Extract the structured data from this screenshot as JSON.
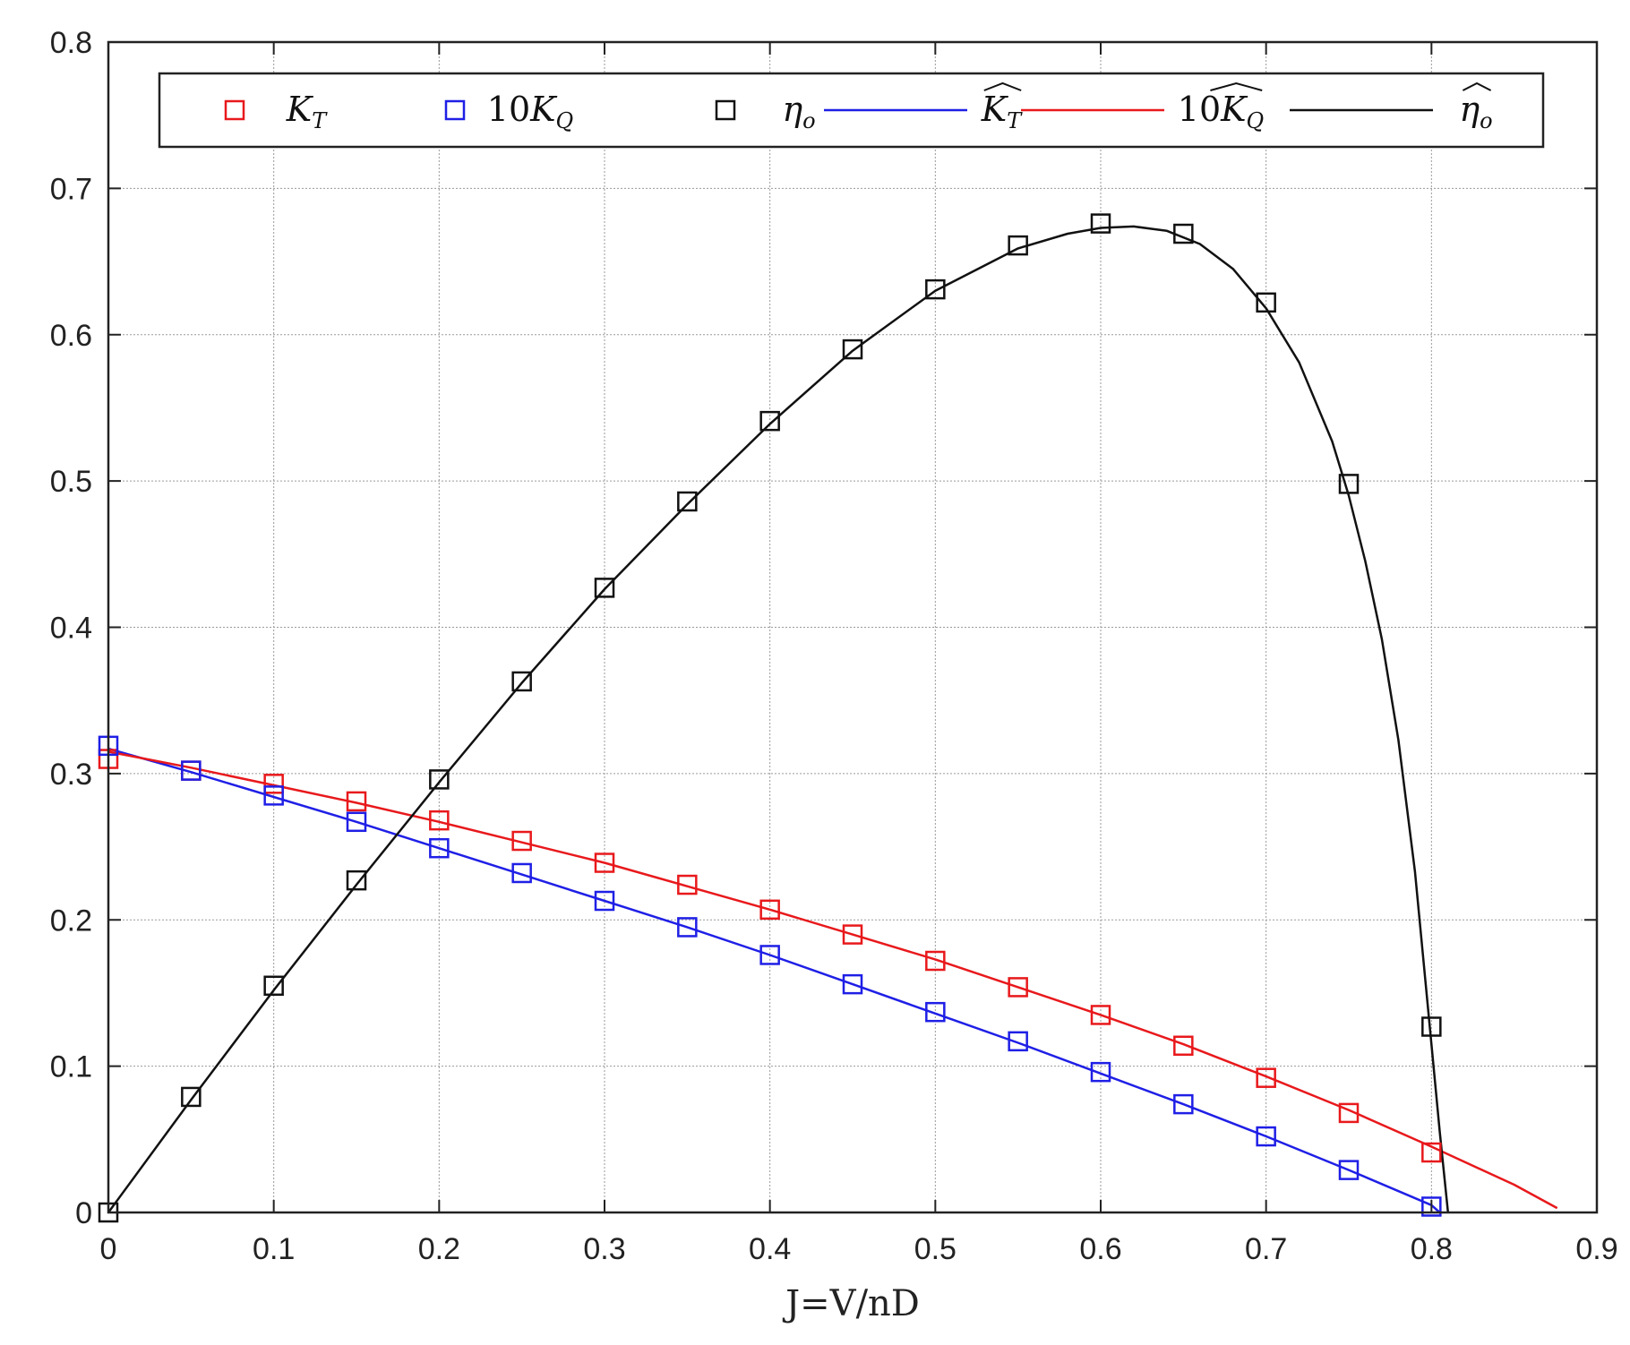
{
  "chart_data": {
    "type": "scatter",
    "xlabel": "J=V/nD",
    "ylabel": "",
    "xlim": [
      0,
      0.9
    ],
    "ylim": [
      0,
      0.8
    ],
    "x_ticks": [
      "0",
      "0.1",
      "0.2",
      "0.3",
      "0.4",
      "0.5",
      "0.6",
      "0.7",
      "0.8",
      "0.9"
    ],
    "y_ticks": [
      "0",
      "0.1",
      "0.2",
      "0.3",
      "0.4",
      "0.5",
      "0.6",
      "0.7",
      "0.8"
    ],
    "grid": true,
    "legend_position": "top",
    "legend": [
      {
        "main": "K",
        "sub": "T",
        "prefix": "",
        "hat": false,
        "symbol": "square",
        "color": "#e8191c"
      },
      {
        "main": "K",
        "sub": "Q",
        "prefix": "10",
        "hat": false,
        "symbol": "square",
        "color": "#1f1fe6"
      },
      {
        "main": "η",
        "sub": "o",
        "prefix": "",
        "hat": false,
        "symbol": "square",
        "color": "#111111"
      },
      {
        "main": "K",
        "sub": "T",
        "prefix": "",
        "hat": true,
        "symbol": "line",
        "color": "#1f1fe6"
      },
      {
        "main": "K",
        "sub": "Q",
        "prefix": "10",
        "hat": true,
        "symbol": "line",
        "color": "#e8191c"
      },
      {
        "main": "η",
        "sub": "o",
        "prefix": "",
        "hat": true,
        "symbol": "line",
        "color": "#111111"
      }
    ],
    "markers": {
      "x": [
        0,
        0.05,
        0.1,
        0.15,
        0.2,
        0.25,
        0.3,
        0.35,
        0.4,
        0.45,
        0.5,
        0.55,
        0.6,
        0.65,
        0.7,
        0.75,
        0.8
      ],
      "series": [
        {
          "color": "#e8191c",
          "values": [
            0.31,
            0.302,
            0.293,
            0.281,
            0.268,
            0.254,
            0.239,
            0.224,
            0.207,
            0.19,
            0.172,
            0.154,
            0.135,
            0.114,
            0.092,
            0.068,
            0.041
          ]
        },
        {
          "color": "#1f1fe6",
          "values": [
            0.319,
            0.302,
            0.285,
            0.267,
            0.249,
            0.232,
            0.213,
            0.195,
            0.176,
            0.156,
            0.137,
            0.117,
            0.096,
            0.074,
            0.052,
            0.029,
            0.004
          ]
        },
        {
          "color": "#111111",
          "values": [
            0.0,
            0.079,
            0.155,
            0.227,
            0.296,
            0.363,
            0.427,
            0.486,
            0.541,
            0.59,
            0.631,
            0.661,
            0.676,
            0.669,
            0.622,
            0.498,
            0.127
          ]
        }
      ]
    },
    "curves": [
      {
        "color": "#1f1fe6",
        "x": [
          0,
          0.05,
          0.1,
          0.15,
          0.2,
          0.25,
          0.3,
          0.35,
          0.4,
          0.45,
          0.5,
          0.55,
          0.6,
          0.65,
          0.7,
          0.75,
          0.8,
          0.805
        ],
        "y": [
          0.317,
          0.301,
          0.284,
          0.267,
          0.249,
          0.231,
          0.213,
          0.195,
          0.176,
          0.156,
          0.136,
          0.116,
          0.095,
          0.074,
          0.052,
          0.029,
          0.005,
          0.0
        ]
      },
      {
        "color": "#e8191c",
        "x": [
          0,
          0.05,
          0.1,
          0.15,
          0.2,
          0.25,
          0.3,
          0.35,
          0.4,
          0.45,
          0.5,
          0.55,
          0.6,
          0.65,
          0.7,
          0.75,
          0.8,
          0.85,
          0.876
        ],
        "y": [
          0.315,
          0.304,
          0.292,
          0.28,
          0.267,
          0.253,
          0.239,
          0.223,
          0.207,
          0.19,
          0.173,
          0.154,
          0.135,
          0.115,
          0.093,
          0.07,
          0.045,
          0.019,
          0.003
        ]
      },
      {
        "color": "#111111",
        "x": [
          0,
          0.05,
          0.1,
          0.15,
          0.2,
          0.25,
          0.3,
          0.35,
          0.4,
          0.45,
          0.5,
          0.55,
          0.58,
          0.6,
          0.62,
          0.64,
          0.66,
          0.68,
          0.7,
          0.72,
          0.74,
          0.75,
          0.76,
          0.77,
          0.78,
          0.79,
          0.8,
          0.805,
          0.81
        ],
        "y": [
          0.0,
          0.077,
          0.152,
          0.224,
          0.294,
          0.362,
          0.426,
          0.484,
          0.539,
          0.589,
          0.63,
          0.659,
          0.669,
          0.673,
          0.674,
          0.671,
          0.662,
          0.645,
          0.618,
          0.581,
          0.527,
          0.49,
          0.445,
          0.392,
          0.323,
          0.233,
          0.115,
          0.055,
          0.0
        ]
      }
    ]
  }
}
